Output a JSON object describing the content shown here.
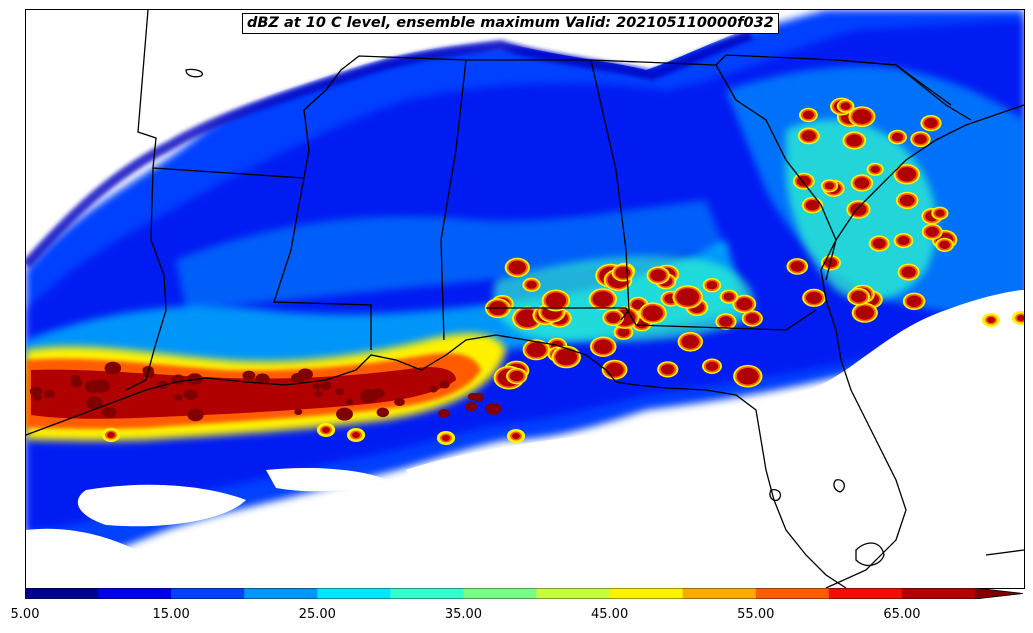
{
  "title": "dBZ at 10 C level, ensemble maximum Valid: 202105110000f032",
  "colorbar": {
    "min": 5,
    "max": 70,
    "step": 5,
    "extend": "max",
    "tick_labels": [
      "5.00",
      "15.00",
      "25.00",
      "35.00",
      "45.00",
      "55.00",
      "65.00"
    ],
    "tick_values": [
      5,
      15,
      25,
      35,
      45,
      55,
      65
    ],
    "colors": [
      "#00008f",
      "#0000e8",
      "#0041ff",
      "#0096ff",
      "#00e6ff",
      "#33ffcc",
      "#7aff85",
      "#c4ff3b",
      "#fff200",
      "#ffaa00",
      "#ff5c00",
      "#f00e00",
      "#b00000",
      "#800000"
    ]
  },
  "map": {
    "region": "Southeastern United States and Gulf of Mexico",
    "ocean_color": "#ffffff",
    "border_color": "#000000"
  }
}
